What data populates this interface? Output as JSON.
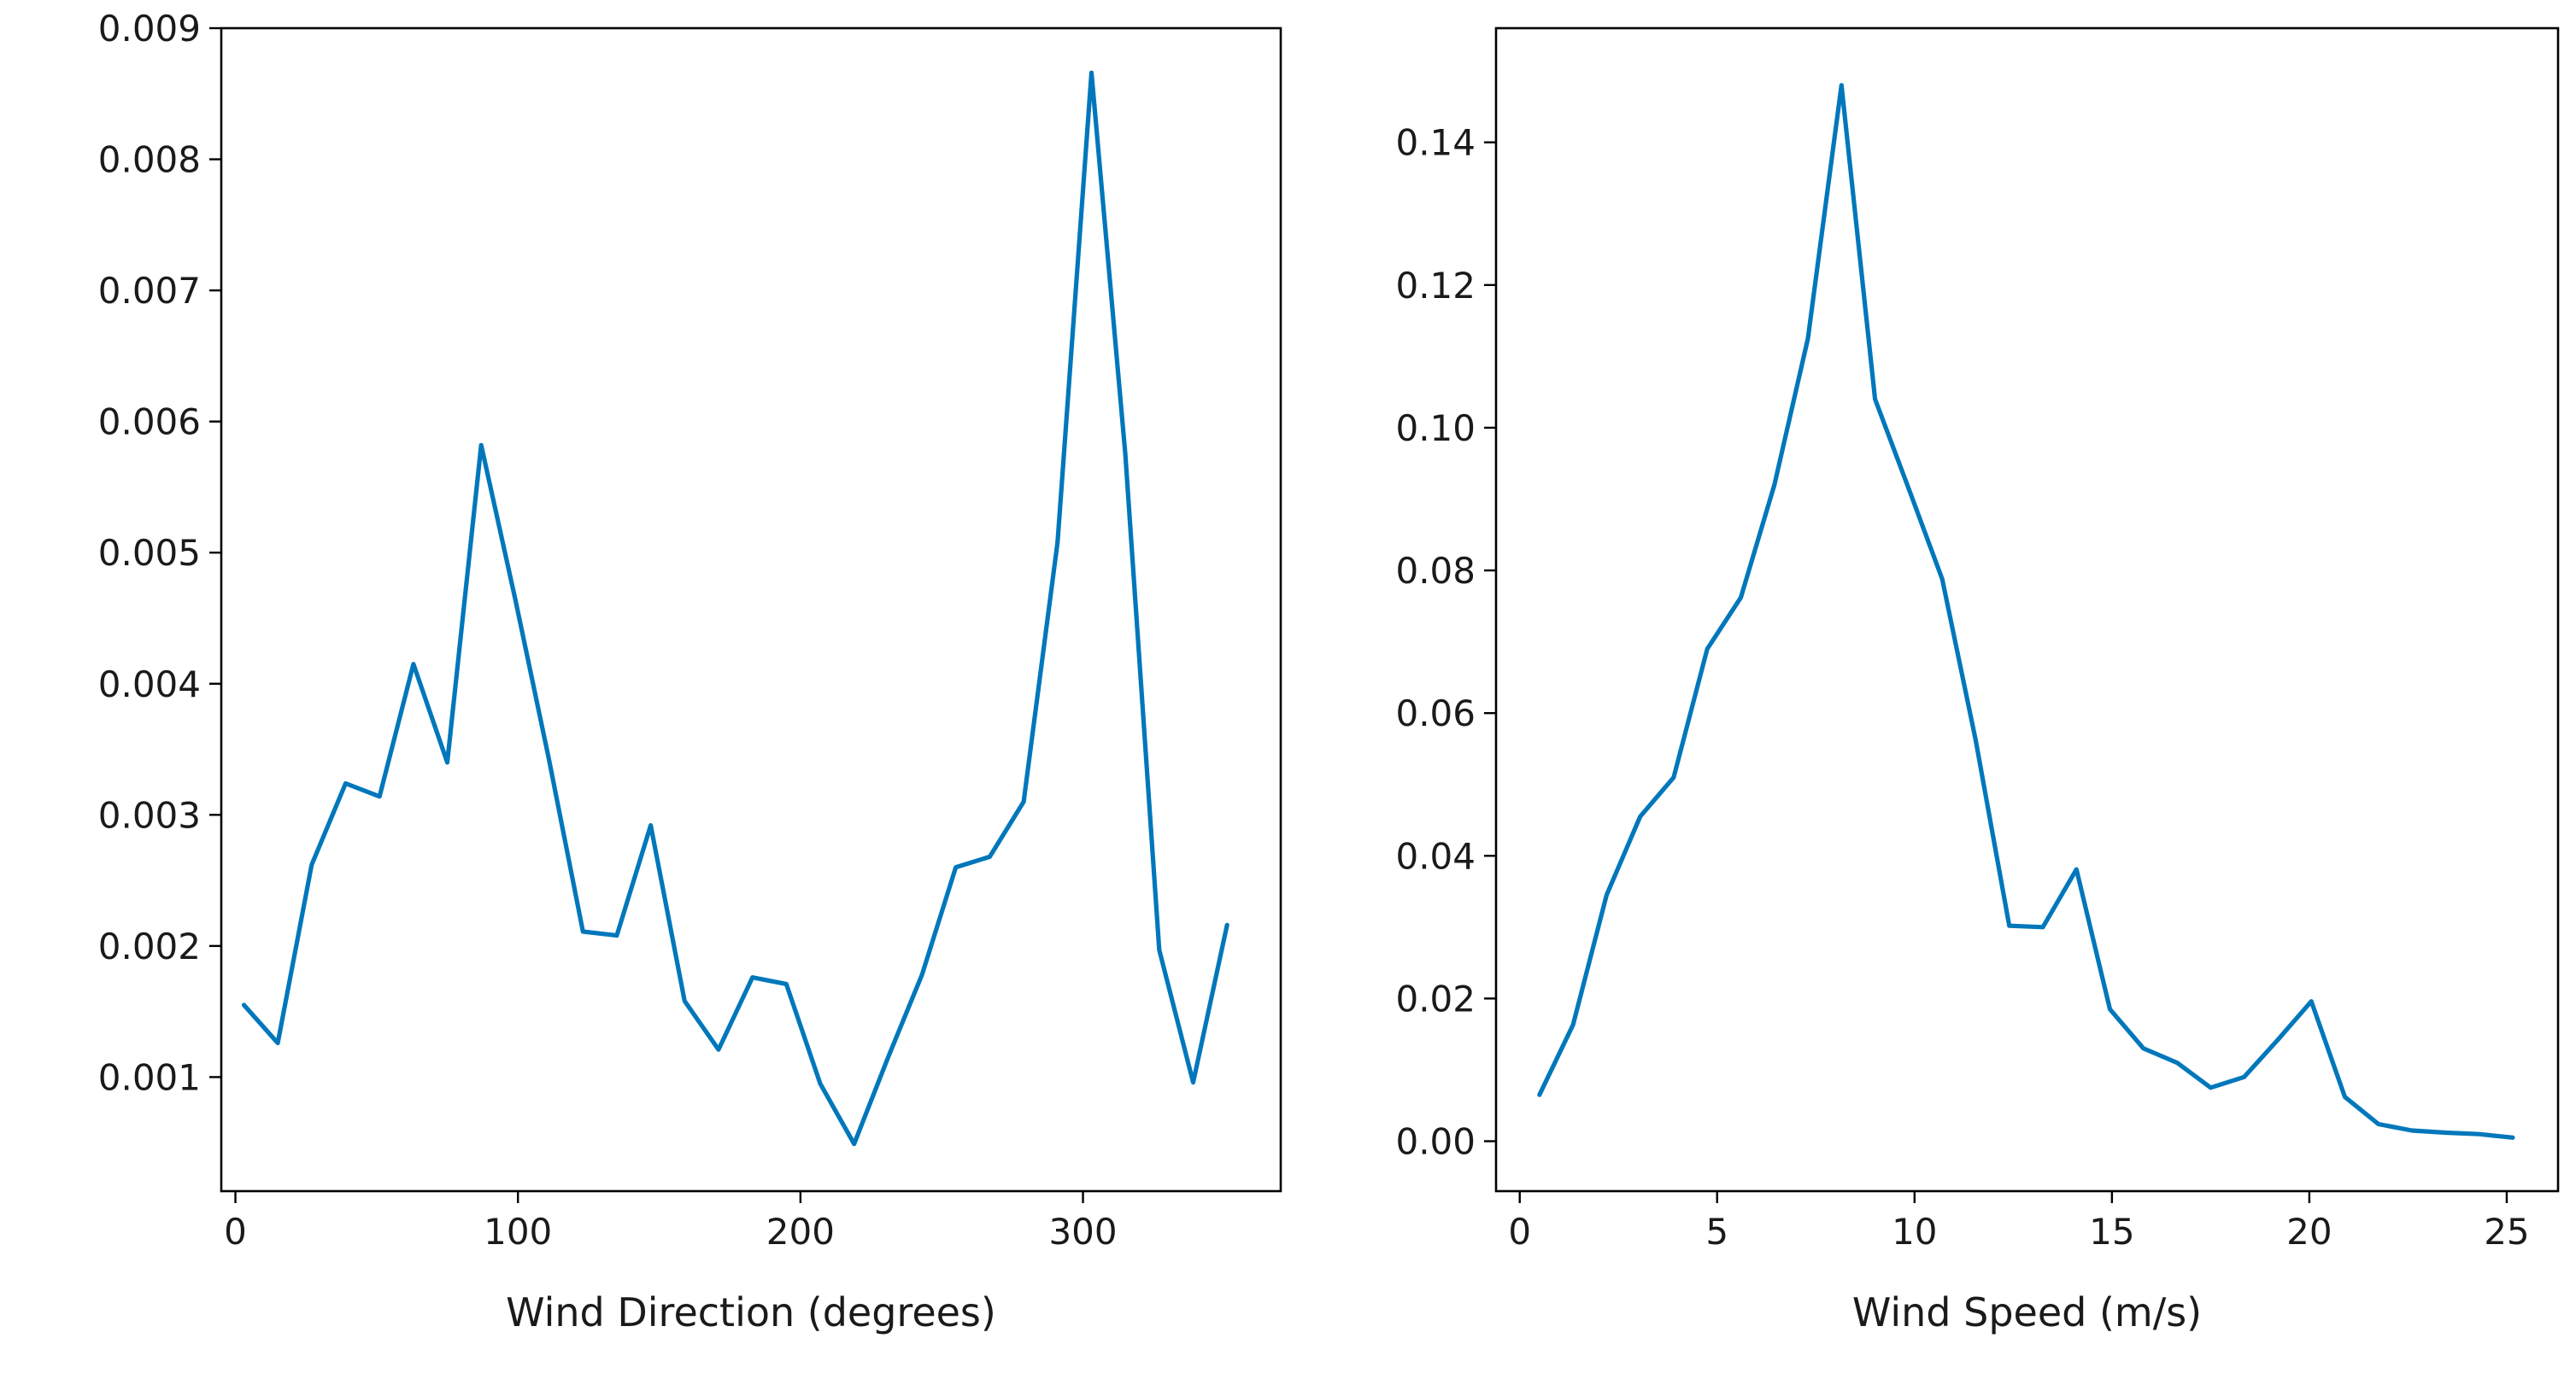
{
  "chart_data": [
    {
      "type": "line",
      "title": "",
      "xlabel": "Wind Direction (degrees)",
      "ylabel": "",
      "xlim": [
        -5,
        370
      ],
      "ylim": [
        0.00013,
        0.009
      ],
      "xticks": [
        0,
        100,
        200,
        300
      ],
      "xtick_labels": [
        "0",
        "100",
        "200",
        "300"
      ],
      "yticks": [
        0.001,
        0.002,
        0.003,
        0.004,
        0.005,
        0.006,
        0.007,
        0.008,
        0.009
      ],
      "ytick_labels": [
        "0.001",
        "0.002",
        "0.003",
        "0.004",
        "0.005",
        "0.006",
        "0.007",
        "0.008",
        "0.009"
      ],
      "grid": false,
      "color": "#0077bb",
      "series": [
        {
          "x": [
            3,
            15,
            27,
            39,
            51,
            63,
            75,
            87,
            99,
            111,
            123,
            135,
            147,
            159,
            171,
            183,
            195,
            207,
            219,
            231,
            243,
            255,
            267,
            279,
            291,
            303,
            315,
            327,
            339,
            351
          ],
          "values": [
            0.00155,
            0.00126,
            0.00262,
            0.00324,
            0.00314,
            0.00415,
            0.0034,
            0.00582,
            0.00465,
            0.00342,
            0.00211,
            0.00208,
            0.00292,
            0.00158,
            0.00121,
            0.00176,
            0.00171,
            0.00095,
            0.00049,
            0.00115,
            0.00178,
            0.0026,
            0.00268,
            0.0031,
            0.00508,
            0.00866,
            0.00575,
            0.00197,
            0.00096,
            0.00216
          ]
        }
      ]
    },
    {
      "type": "line",
      "title": "",
      "xlabel": "Wind Speed (m/s)",
      "ylabel": "",
      "xlim": [
        -0.6,
        26.3
      ],
      "ylim": [
        -0.007,
        0.156
      ],
      "xticks": [
        0,
        5,
        10,
        15,
        20,
        25
      ],
      "xtick_labels": [
        "0",
        "5",
        "10",
        "15",
        "20",
        "25"
      ],
      "yticks": [
        0.0,
        0.02,
        0.04,
        0.06,
        0.08,
        0.1,
        0.12,
        0.14
      ],
      "ytick_labels": [
        "0.00",
        "0.02",
        "0.04",
        "0.06",
        "0.08",
        "0.10",
        "0.12",
        "0.14"
      ],
      "grid": false,
      "color": "#0077bb",
      "series": [
        {
          "x": [
            0.5,
            1.35,
            2.2,
            3.05,
            3.9,
            4.75,
            5.6,
            6.45,
            7.3,
            8.15,
            9.0,
            9.85,
            10.7,
            11.55,
            12.4,
            13.25,
            14.1,
            14.95,
            15.8,
            16.65,
            17.5,
            18.35,
            19.2,
            20.05,
            20.9,
            21.75,
            22.6,
            23.45,
            24.3,
            25.15
          ],
          "values": [
            0.0065,
            0.0163,
            0.0345,
            0.0455,
            0.051,
            0.069,
            0.0762,
            0.092,
            0.1125,
            0.148,
            0.104,
            0.0915,
            0.0788,
            0.0562,
            0.0302,
            0.03,
            0.0381,
            0.0185,
            0.013,
            0.011,
            0.0075,
            0.009,
            0.0142,
            0.0196,
            0.0062,
            0.0024,
            0.0015,
            0.0012,
            0.001,
            0.0005
          ]
        }
      ]
    }
  ]
}
